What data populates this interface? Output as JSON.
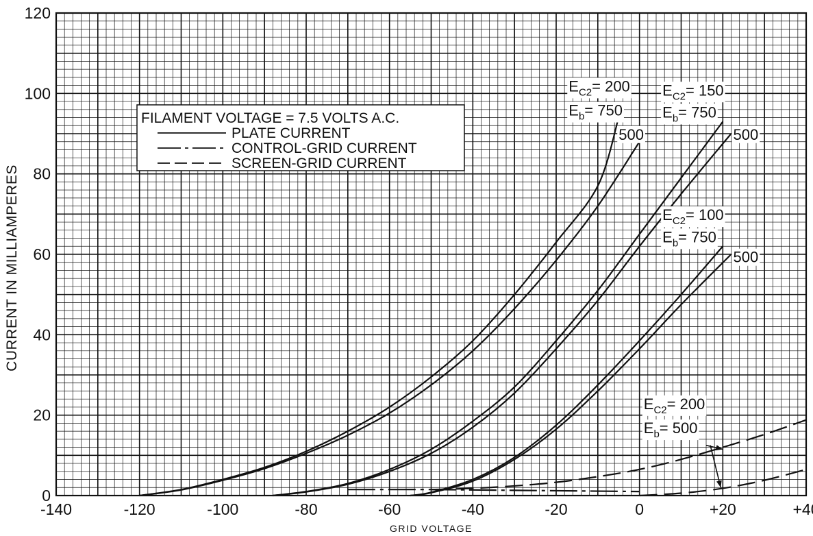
{
  "chart_data": {
    "type": "line",
    "title": "",
    "xlabel": "GRID VOLTAGE",
    "ylabel": "CURRENT IN MILLIAMPERES",
    "xlim": [
      -140,
      40
    ],
    "ylim": [
      0,
      120
    ],
    "x_ticks": [
      "-140",
      "-120",
      "-100",
      "-80",
      "-60",
      "-40",
      "-20",
      "0",
      "+20",
      "+40"
    ],
    "y_ticks": [
      "0",
      "20",
      "40",
      "60",
      "80",
      "100",
      "120"
    ],
    "grid": true,
    "legend": {
      "placement": "top-left",
      "heading": "FILAMENT VOLTAGE = 7.5 VOLTS A.C.",
      "entries": [
        {
          "label": "PLATE CURRENT",
          "style": "solid"
        },
        {
          "label": "CONTROL-GRID CURRENT",
          "style": "dash-dot"
        },
        {
          "label": "SCREEN-GRID CURRENT",
          "style": "dashed"
        }
      ]
    },
    "series": [
      {
        "kind": "plate",
        "style": "solid",
        "ec2": 200,
        "eb": 750,
        "x": [
          -120,
          -110,
          -100,
          -90,
          -80,
          -70,
          -60,
          -50,
          -40,
          -30,
          -20,
          -10,
          -5
        ],
        "y": [
          0,
          1.5,
          4,
          7,
          11,
          16,
          22,
          29.5,
          38.5,
          50,
          63,
          77,
          94
        ]
      },
      {
        "kind": "plate",
        "style": "solid",
        "ec2": 200,
        "eb": 500,
        "x": [
          -120,
          -110,
          -100,
          -90,
          -80,
          -70,
          -60,
          -50,
          -40,
          -30,
          -20,
          -10,
          0
        ],
        "y": [
          0,
          1.4,
          3.8,
          6.7,
          10.5,
          15,
          20.5,
          27.5,
          36,
          46.5,
          58.5,
          72,
          88
        ]
      },
      {
        "kind": "plate",
        "style": "solid",
        "ec2": 150,
        "eb": 750,
        "x": [
          -88,
          -80,
          -70,
          -60,
          -50,
          -40,
          -30,
          -20,
          -10,
          0,
          10,
          20
        ],
        "y": [
          0,
          1,
          3,
          6.5,
          11.5,
          18.5,
          27,
          38.5,
          51,
          65,
          79,
          93
        ]
      },
      {
        "kind": "plate",
        "style": "solid",
        "ec2": 150,
        "eb": 500,
        "x": [
          -88,
          -80,
          -70,
          -60,
          -50,
          -40,
          -30,
          -20,
          -10,
          0,
          10,
          22
        ],
        "y": [
          0,
          0.9,
          2.8,
          6,
          10.5,
          17,
          25.5,
          36.5,
          48.5,
          62,
          75,
          90
        ]
      },
      {
        "kind": "plate",
        "style": "solid",
        "ec2": 100,
        "eb": 750,
        "x": [
          -55,
          -50,
          -40,
          -30,
          -20,
          -10,
          0,
          10,
          20
        ],
        "y": [
          0,
          0.8,
          4,
          9.5,
          17.5,
          27.5,
          38.5,
          50,
          62
        ]
      },
      {
        "kind": "plate",
        "style": "solid",
        "ec2": 100,
        "eb": 500,
        "x": [
          -55,
          -50,
          -40,
          -30,
          -20,
          -10,
          0,
          10,
          22
        ],
        "y": [
          0,
          0.7,
          3.6,
          9,
          16.5,
          26,
          36.5,
          47.5,
          60
        ]
      },
      {
        "kind": "control-grid",
        "style": "dash-dot",
        "ec2": 200,
        "eb": 500,
        "x": [
          -70,
          -60,
          -50,
          -40,
          -30,
          -20,
          -10,
          0
        ],
        "y": [
          1.5,
          1.5,
          1.5,
          1.4,
          1.3,
          1.2,
          1.1,
          1
        ]
      },
      {
        "kind": "screen-grid",
        "style": "dashed",
        "ec2": 200,
        "eb": 500,
        "x": [
          -50,
          -40,
          -30,
          -20,
          -10,
          0,
          10,
          20,
          30,
          40
        ],
        "y": [
          1.5,
          1.8,
          2.4,
          3.3,
          4.7,
          6.5,
          9,
          12,
          15.2,
          18.8
        ]
      },
      {
        "kind": "screen-grid",
        "style": "dashed",
        "ec2": 200,
        "eb": 500,
        "x": [
          0,
          10,
          20,
          30,
          40
        ],
        "y": [
          0,
          0.6,
          1.8,
          3.8,
          6.5
        ]
      }
    ],
    "annotations": [
      {
        "id": "a1",
        "x": -17,
        "y": 100.5,
        "label": "E",
        "sub": "C2",
        "text": "= 200"
      },
      {
        "id": "a2",
        "x": -17,
        "y": 94.5,
        "label": "E",
        "sub": "b",
        "text": "= 750"
      },
      {
        "id": "a3",
        "x": -5,
        "y": 88.5,
        "label": "",
        "sub": "",
        "text": "500"
      },
      {
        "id": "a4",
        "x": 5.5,
        "y": 99.5,
        "label": "E",
        "sub": "C2",
        "text": "= 150"
      },
      {
        "id": "a5",
        "x": 5.5,
        "y": 94,
        "label": "E",
        "sub": "b",
        "text": "= 750"
      },
      {
        "id": "a6",
        "x": 22.5,
        "y": 88.5,
        "label": "",
        "sub": "",
        "text": "500"
      },
      {
        "id": "a7",
        "x": 5.5,
        "y": 68.5,
        "label": "E",
        "sub": "C2",
        "text": "= 100"
      },
      {
        "id": "a8",
        "x": 5.5,
        "y": 63,
        "label": "E",
        "sub": "b",
        "text": "= 750"
      },
      {
        "id": "a9",
        "x": 22.5,
        "y": 58,
        "label": "",
        "sub": "",
        "text": "500"
      },
      {
        "id": "a10",
        "x": 1,
        "y": 21.5,
        "label": "E",
        "sub": "C2",
        "text": "= 200"
      },
      {
        "id": "a11",
        "x": 1,
        "y": 15.5,
        "label": "E",
        "sub": "b",
        "text": "= 500"
      }
    ]
  }
}
